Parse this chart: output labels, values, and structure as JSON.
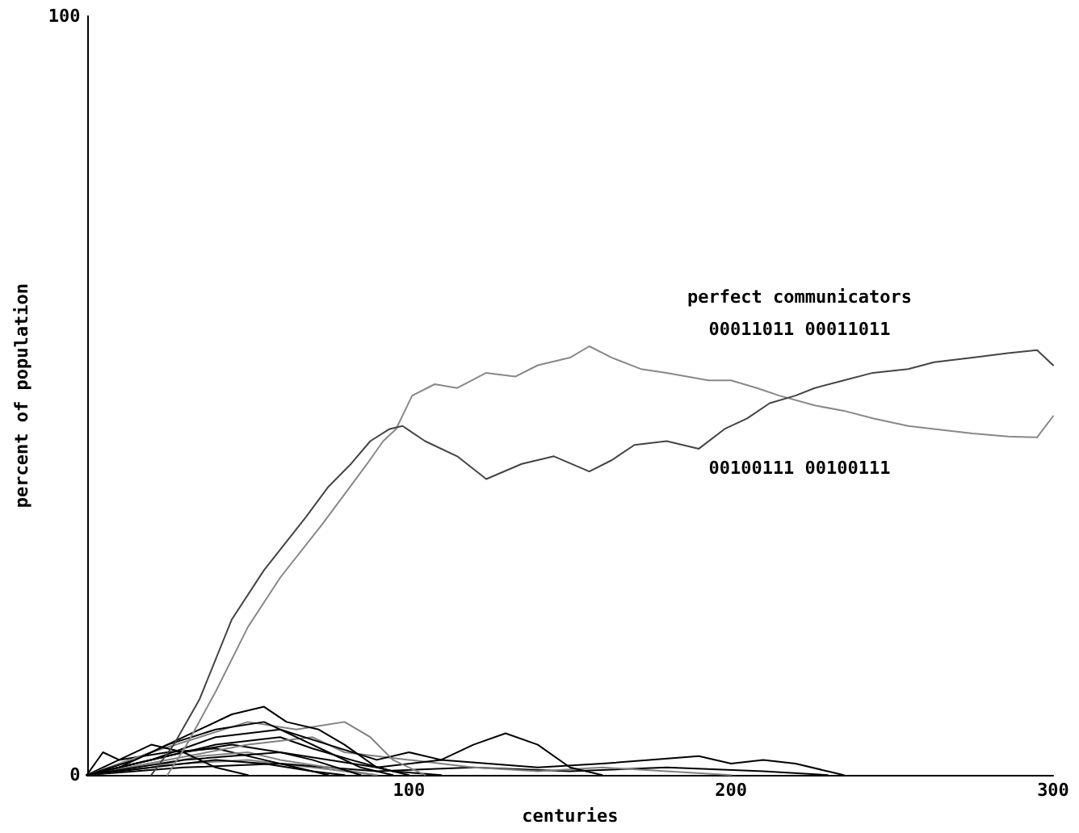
{
  "chart_data": {
    "type": "line",
    "xlabel": "centuries",
    "ylabel": "percent of population",
    "xlim": [
      0,
      300
    ],
    "ylim": [
      0,
      100
    ],
    "xticks": [
      100,
      200,
      300
    ],
    "yticks": [
      0,
      100
    ],
    "grid": false,
    "marker": "none",
    "line_style": "solid",
    "annotations": [
      "perfect communicators",
      "00011011 00011011",
      "00100111 00100111"
    ],
    "series": [
      {
        "color": "#444444",
        "x": [
          20,
          27,
          35,
          45,
          55,
          68,
          75,
          82,
          88,
          94,
          98,
          105,
          115,
          124,
          135,
          145,
          156,
          163,
          170,
          180,
          190,
          198,
          205,
          212,
          220,
          226,
          235,
          244,
          255,
          263,
          275,
          286,
          295,
          300
        ],
        "values": [
          0,
          4,
          10,
          20.5,
          27,
          34,
          38,
          41,
          44,
          45.6,
          46,
          44,
          42,
          39,
          41,
          42,
          40,
          41.5,
          43.5,
          44,
          43,
          45.6,
          47,
          49,
          50,
          51,
          52,
          53,
          53.5,
          54.4,
          55,
          55.6,
          56,
          54
        ]
      },
      {
        "color": "#888888",
        "x": [
          25,
          31,
          40,
          50,
          60,
          73,
          80,
          87,
          92,
          96,
          101,
          108,
          115,
          124,
          133,
          140,
          150,
          156,
          163,
          172,
          180,
          193,
          200,
          208,
          215,
          226,
          235,
          244,
          255,
          263,
          275,
          286,
          295,
          300
        ],
        "values": [
          0,
          4,
          11,
          19.5,
          26,
          33,
          37,
          41,
          44,
          45.6,
          50,
          51.5,
          51,
          53,
          52.5,
          54,
          55,
          56.5,
          55,
          53.5,
          53,
          52,
          52,
          51,
          50,
          48.7,
          48,
          47,
          46,
          45.6,
          45,
          44.6,
          44.5,
          47.3
        ]
      },
      {
        "color": "#000000",
        "x": [
          0,
          5,
          10,
          20,
          30,
          40,
          50
        ],
        "values": [
          0,
          3,
          2,
          4,
          3,
          1,
          0
        ]
      },
      {
        "color": "#000000",
        "x": [
          0,
          10,
          25,
          40,
          55,
          65,
          75,
          85,
          95
        ],
        "values": [
          0,
          1,
          4,
          6,
          7,
          5,
          3,
          1,
          0
        ]
      },
      {
        "color": "#000000",
        "x": [
          0,
          15,
          30,
          45,
          55,
          62,
          72,
          80,
          90,
          100
        ],
        "values": [
          0,
          2,
          5,
          8,
          9,
          7,
          6,
          4,
          1,
          0
        ]
      },
      {
        "color": "#808080",
        "x": [
          0,
          20,
          35,
          50,
          65,
          80,
          88,
          95,
          105
        ],
        "values": [
          0,
          3,
          5,
          7,
          6,
          7,
          5,
          2,
          0
        ]
      },
      {
        "color": "#000000",
        "x": [
          0,
          20,
          40,
          60,
          75,
          90,
          100,
          110,
          120,
          130,
          140,
          150,
          160
        ],
        "values": [
          0,
          2,
          5,
          6,
          4,
          2,
          3,
          2,
          4,
          5.5,
          4,
          1,
          0
        ]
      },
      {
        "color": "#000000",
        "x": [
          0,
          30,
          60,
          90,
          110,
          140,
          160,
          190,
          200,
          210,
          220,
          230,
          235
        ],
        "values": [
          0,
          2,
          3,
          1,
          2,
          1,
          1.5,
          2.5,
          1.5,
          2,
          1.5,
          0.5,
          0
        ]
      },
      {
        "color": "#808080",
        "x": [
          0,
          25,
          50,
          70,
          80,
          100,
          120,
          140,
          160,
          180,
          200
        ],
        "values": [
          0,
          2,
          4,
          5,
          3,
          2,
          1,
          0.5,
          1,
          0.5,
          0
        ]
      },
      {
        "color": "#000000",
        "x": [
          0,
          20,
          40,
          55,
          70,
          80
        ],
        "values": [
          0,
          1,
          2,
          1.5,
          0.5,
          0
        ]
      },
      {
        "color": "#000000",
        "x": [
          0,
          15,
          30,
          45,
          60,
          70,
          85
        ],
        "values": [
          0,
          1.5,
          3,
          4,
          3,
          2,
          0
        ]
      },
      {
        "color": "#808080",
        "x": [
          0,
          20,
          35,
          50,
          60,
          75,
          90
        ],
        "values": [
          0,
          1,
          2.5,
          3,
          2,
          1,
          0
        ]
      },
      {
        "color": "#000000",
        "x": [
          0,
          10,
          25,
          40,
          55,
          65,
          75
        ],
        "values": [
          0,
          2,
          3,
          3.5,
          2,
          1,
          0
        ]
      },
      {
        "color": "#000000",
        "x": [
          0,
          30,
          60,
          90,
          120,
          150,
          180,
          210,
          230
        ],
        "values": [
          0,
          1,
          1.5,
          0.5,
          1,
          0.5,
          1,
          0.5,
          0
        ]
      },
      {
        "color": "#000000",
        "x": [
          0,
          40,
          60,
          70,
          82,
          95,
          110
        ],
        "values": [
          0,
          4,
          5,
          3.5,
          2,
          0.5,
          0
        ]
      },
      {
        "color": "#808080",
        "x": [
          0,
          30,
          50,
          70,
          90
        ],
        "values": [
          0,
          1.5,
          2,
          1,
          0
        ]
      }
    ]
  }
}
